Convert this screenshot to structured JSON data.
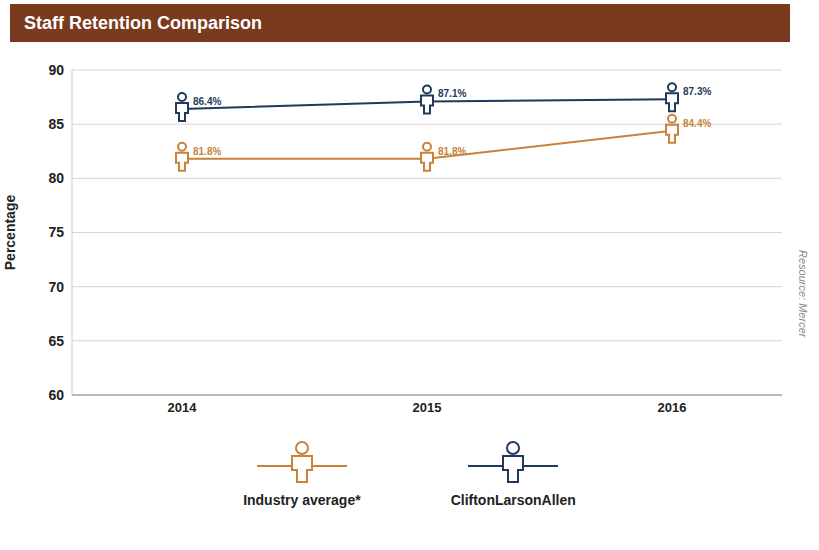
{
  "chart_data": {
    "type": "line",
    "title": "Staff Retention Comparison",
    "y_label": "Percentage",
    "categories": [
      "2014",
      "2015",
      "2016"
    ],
    "series": [
      {
        "name": "Industry average*",
        "color": "#c8823a",
        "values": [
          81.8,
          81.8,
          84.4
        ],
        "value_labels": [
          "81.8%",
          "81.8%",
          "84.4%"
        ]
      },
      {
        "name": "CliftonLarsonAllen",
        "color": "#1f3a5a",
        "values": [
          86.4,
          87.1,
          87.3
        ],
        "value_labels": [
          "86.4%",
          "87.1%",
          "87.3%"
        ]
      }
    ],
    "ylim": [
      60,
      90
    ],
    "yticks": [
      60,
      65,
      70,
      75,
      80,
      85,
      90
    ],
    "grid": true,
    "legend": "bottom",
    "data_labels": true,
    "marker": "person",
    "line_style": "solid",
    "annotations": [
      "Resource: Mercer"
    ]
  }
}
